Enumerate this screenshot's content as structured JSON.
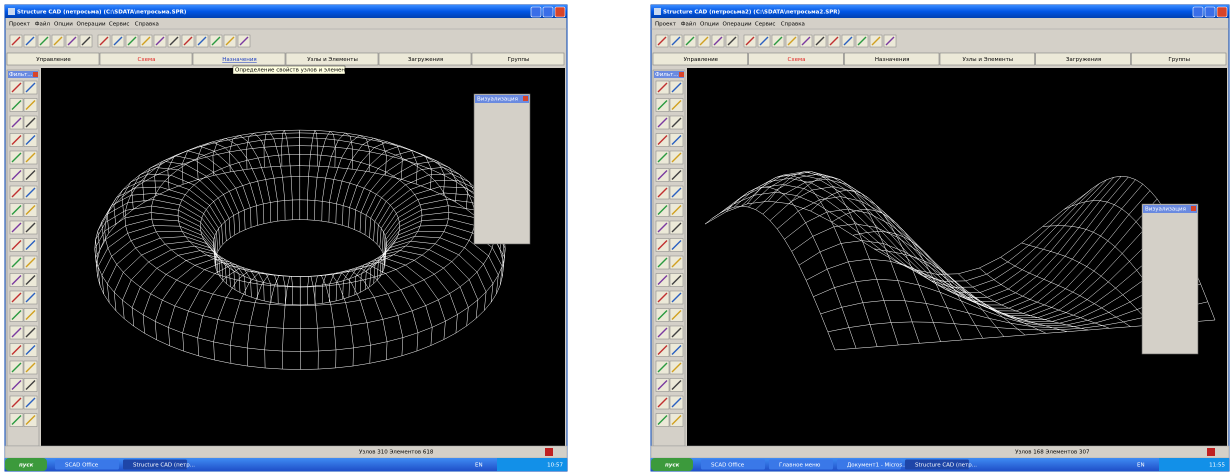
{
  "windows": [
    {
      "title": "Structure CAD (петросьма) (C:\\SDATA\\петросьма.SPR)",
      "menu": [
        "Проект",
        "Файл",
        "Опции",
        "Операции",
        "Сервис",
        "Справка"
      ],
      "tabs": [
        "Управление",
        "Схема",
        "Назначения",
        "Узлы и Элементы",
        "Загружения",
        "Группы"
      ],
      "tooltip": "Определение свойств узлов и элементов",
      "filter_title": "Фильт...",
      "viz_title": "Визуализация",
      "status": "Узлов 310 Элементов 618",
      "taskbar": {
        "start": "пуск",
        "items": [
          "SCAD Office",
          "Structure CAD (петр..."
        ],
        "lang": "EN",
        "clock": "10:57"
      }
    },
    {
      "title": "Structure CAD (петросьма2) (C:\\SDATA\\петросьма2.SPR)",
      "menu": [
        "Проект",
        "Файл",
        "Опции",
        "Операции",
        "Сервис",
        "Справка"
      ],
      "tabs": [
        "Управление",
        "Схема",
        "Назначения",
        "Узлы и Элементы",
        "Загружения",
        "Группы"
      ],
      "filter_title": "Фильт...",
      "viz_title": "Визуализация",
      "status": "Узлов 168 Элементов 307",
      "taskbar": {
        "start": "пуск",
        "items": [
          "SCAD Office",
          "Главное меню",
          "Документ1 - Micros...",
          "Structure CAD (петр..."
        ],
        "lang": "EN",
        "clock": "11:55"
      }
    }
  ]
}
